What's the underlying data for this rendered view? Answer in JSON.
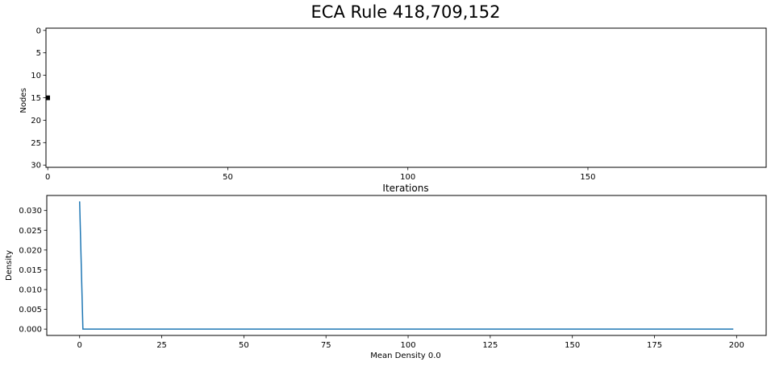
{
  "figure": {
    "title": "ECA Rule 418,709,152"
  },
  "chart_data": [
    {
      "type": "heatmap",
      "title": "Iterations",
      "xlabel": "",
      "ylabel": "Nodes",
      "xlim": [
        0,
        199
      ],
      "ylim": [
        30,
        0
      ],
      "x_ticks": [
        "0",
        "50",
        "100",
        "150"
      ],
      "y_ticks": [
        "0",
        "5",
        "10",
        "15",
        "20",
        "25",
        "30"
      ],
      "colors": {
        "off": "#ffffff",
        "on": "#000000"
      },
      "active_cells": [
        {
          "iteration": 0,
          "node": 15
        }
      ]
    },
    {
      "type": "line",
      "title": "",
      "xlabel": "Mean Density 0.0",
      "ylabel": "Density",
      "xlim": [
        -10,
        209
      ],
      "ylim": [
        -0.0016,
        0.0338
      ],
      "x_ticks": [
        "0",
        "25",
        "50",
        "75",
        "100",
        "125",
        "150",
        "175",
        "200"
      ],
      "y_ticks": [
        "0.000",
        "0.005",
        "0.010",
        "0.015",
        "0.020",
        "0.025",
        "0.030"
      ],
      "series": [
        {
          "color": "#1f77b4",
          "points": [
            [
              0,
              0.0323
            ],
            [
              1,
              0.0
            ],
            [
              199,
              0.0
            ]
          ]
        }
      ]
    }
  ]
}
